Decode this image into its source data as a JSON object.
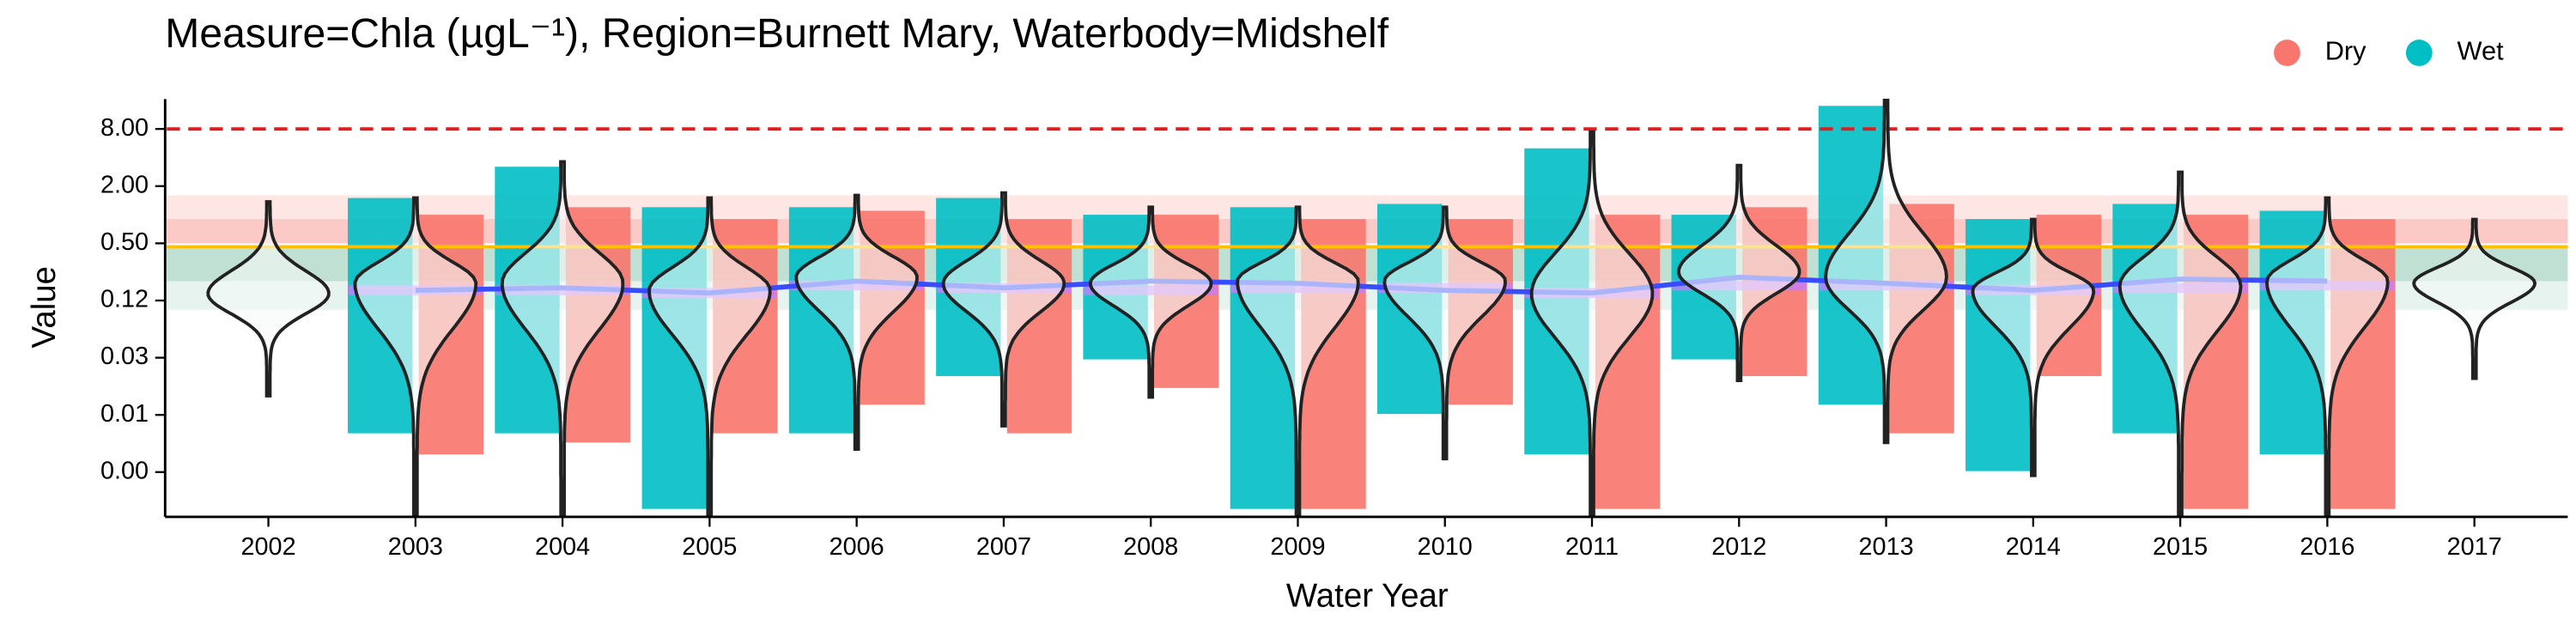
{
  "chart_data": {
    "type": "violin",
    "title": "Measure=Chla (µgL⁻¹), Region=Burnett Mary, Waterbody=Midshelf",
    "x_label": "Water Year",
    "y_label": "Value",
    "log_scale": true,
    "categories": [
      "2002",
      "2003",
      "2004",
      "2005",
      "2006",
      "2007",
      "2008",
      "2009",
      "2010",
      "2011",
      "2012",
      "2013",
      "2014",
      "2015",
      "2016",
      "2017"
    ],
    "ylim": [
      0.00066,
      16.5
    ],
    "yticks": [
      {
        "value": 0.001953125,
        "label": "0.00"
      },
      {
        "value": 0.0078125,
        "label": "0.01"
      },
      {
        "value": 0.03125,
        "label": "0.03"
      },
      {
        "value": 0.125,
        "label": "0.12"
      },
      {
        "value": 0.5,
        "label": "0.50"
      },
      {
        "value": 2,
        "label": "2.00"
      },
      {
        "value": 8,
        "label": "8.00"
      }
    ],
    "violin_min": [
      0.0124,
      0.0007,
      0.0007,
      0.0007,
      0.0034,
      0.006,
      0.012,
      0.0007,
      0.0027,
      0.0007,
      0.018,
      0.004,
      0.0018,
      0.0007,
      0.0007,
      0.019
    ],
    "violin_median": [
      0.148,
      0.19,
      0.19,
      0.16,
      0.22,
      0.19,
      0.19,
      0.2,
      0.2,
      0.148,
      0.25,
      0.22,
      0.16,
      0.18,
      0.2,
      0.19
    ],
    "violin_max": [
      1.37,
      1.5,
      3.6,
      1.5,
      1.6,
      1.7,
      1.2,
      1.2,
      1.2,
      7.4,
      3.3,
      16,
      0.89,
      2.8,
      1.5,
      0.89
    ],
    "series": [
      {
        "name": "Dry",
        "color": "#f8766d",
        "values": [
          null,
          [
            0.003,
            1.0
          ],
          [
            0.004,
            1.2
          ],
          [
            0.005,
            0.9
          ],
          [
            0.01,
            1.1
          ],
          [
            0.005,
            0.9
          ],
          [
            0.015,
            1.0
          ],
          [
            0.0008,
            0.9
          ],
          [
            0.01,
            0.9
          ],
          [
            0.0008,
            1.0
          ],
          [
            0.02,
            1.2
          ],
          [
            0.005,
            1.3
          ],
          [
            0.02,
            1.0
          ],
          [
            0.0008,
            1.0
          ],
          [
            0.0008,
            0.9
          ],
          null
        ]
      },
      {
        "name": "Wet",
        "color": "#00bfc4",
        "values": [
          null,
          [
            0.005,
            1.5
          ],
          [
            0.005,
            3.2
          ],
          [
            0.0008,
            1.2
          ],
          [
            0.005,
            1.2
          ],
          [
            0.02,
            1.5
          ],
          [
            0.03,
            1.0
          ],
          [
            0.0008,
            1.2
          ],
          [
            0.008,
            1.3
          ],
          [
            0.003,
            5
          ],
          [
            0.03,
            1.0
          ],
          [
            0.01,
            14
          ],
          [
            0.002,
            0.9
          ],
          [
            0.005,
            1.3
          ],
          [
            0.003,
            1.1
          ],
          null
        ]
      }
    ],
    "annual_mean": {
      "color": "#c77dff",
      "values": [
        null,
        0.16,
        0.16,
        0.15,
        0.18,
        0.17,
        0.16,
        0.17,
        0.17,
        0.15,
        0.18,
        0.18,
        0.16,
        0.17,
        0.18,
        null
      ]
    },
    "trend": {
      "color": "#3a4cff",
      "values": [
        null,
        0.16,
        0.17,
        0.15,
        0.2,
        0.17,
        0.2,
        0.19,
        0.16,
        0.15,
        0.22,
        0.19,
        0.16,
        0.21,
        0.2,
        null
      ]
    },
    "bands": [
      {
        "lo": 0.5,
        "hi": 1.6,
        "color": "rgba(248,118,109,0.18)"
      },
      {
        "lo": 0.5,
        "hi": 0.9,
        "color": "rgba(248,118,109,0.25)"
      },
      {
        "lo": 0.1,
        "hi": 0.46,
        "color": "rgba(60,160,120,0.13)"
      },
      {
        "lo": 0.2,
        "hi": 0.46,
        "color": "rgba(60,160,120,0.22)"
      }
    ],
    "guideline": {
      "value": 0.46,
      "color": "#ffc000"
    },
    "threshold": {
      "value": 8,
      "color": "#e41a1c"
    }
  }
}
